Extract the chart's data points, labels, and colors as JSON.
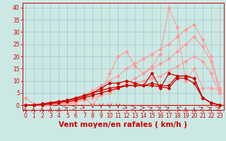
{
  "xlabel": "Vent moyen/en rafales ( km/h )",
  "background_color": "#cce8e4",
  "grid_color": "#aacccc",
  "line_color_light": "#ff9999",
  "line_color_dark": "#cc0000",
  "x_ticks": [
    0,
    1,
    2,
    3,
    4,
    5,
    6,
    7,
    8,
    9,
    10,
    11,
    12,
    13,
    14,
    15,
    16,
    17,
    18,
    19,
    20,
    21,
    22,
    23
  ],
  "y_ticks": [
    0,
    5,
    10,
    15,
    20,
    25,
    30,
    35,
    40
  ],
  "ylim": [
    -2,
    42
  ],
  "xlim": [
    -0.3,
    23.5
  ],
  "series_light": [
    [
      3,
      0.5,
      0.5,
      0.5,
      1,
      0.5,
      1,
      3,
      0,
      5,
      13,
      20,
      22,
      16,
      13,
      16,
      21,
      40,
      32,
      10,
      15,
      7,
      7,
      6
    ],
    [
      0,
      0,
      0,
      0.5,
      1,
      2,
      3,
      4,
      6,
      8,
      10,
      12,
      15,
      17,
      19,
      21,
      23,
      25,
      28,
      31,
      33,
      27,
      20,
      7
    ],
    [
      0,
      0,
      0,
      0,
      0.5,
      1,
      1.5,
      2,
      3,
      4,
      5,
      7,
      9,
      11,
      13,
      15,
      17,
      19,
      22,
      25,
      28,
      24,
      18,
      6
    ],
    [
      0,
      0,
      0,
      0,
      0.5,
      1,
      2,
      3,
      4,
      5,
      6,
      7,
      8,
      9,
      10,
      11,
      12,
      14,
      16,
      18,
      20,
      18,
      13,
      5
    ]
  ],
  "series_dark": [
    [
      0,
      0,
      0.5,
      1,
      1.5,
      2,
      2.5,
      3.5,
      5,
      7,
      9,
      9,
      10,
      9,
      8,
      13,
      7,
      13,
      12,
      12,
      11,
      3,
      1,
      0
    ],
    [
      0,
      0,
      0.5,
      1,
      1.5,
      2,
      3,
      4,
      5,
      6,
      7,
      7.5,
      8,
      8,
      8,
      9,
      8,
      8,
      12,
      12,
      11,
      3,
      1,
      0
    ],
    [
      0,
      0,
      0,
      0.5,
      1,
      1.5,
      2,
      3,
      4,
      5,
      6,
      7,
      8,
      8,
      8,
      8,
      7.5,
      7,
      11,
      11,
      9,
      3,
      1,
      0
    ]
  ],
  "tick_fontsize": 5.5,
  "xlabel_fontsize": 7.5
}
